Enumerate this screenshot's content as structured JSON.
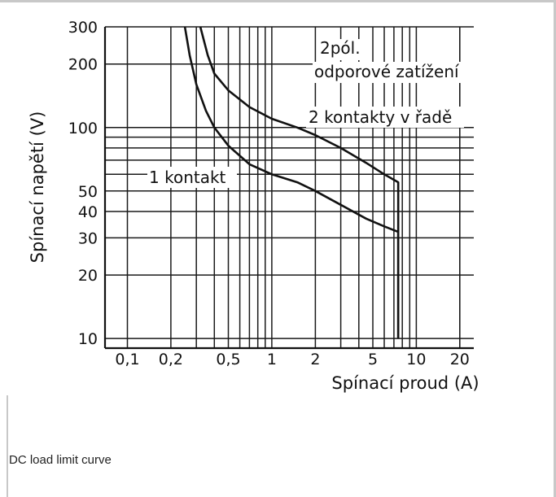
{
  "chart_data": {
    "type": "line",
    "xlabel": "Spínací proud (A)",
    "ylabel": "Spínací napětí (V)",
    "x_scale": "log",
    "y_scale": "log",
    "xlim": [
      0.07,
      25
    ],
    "ylim": [
      9,
      300
    ],
    "x_ticks": [
      {
        "value": 0.1,
        "label": "0,1"
      },
      {
        "value": 0.2,
        "label": "0,2"
      },
      {
        "value": 0.5,
        "label": "0,5"
      },
      {
        "value": 1,
        "label": "1"
      },
      {
        "value": 2,
        "label": "2"
      },
      {
        "value": 5,
        "label": "5"
      },
      {
        "value": 10,
        "label": "10"
      },
      {
        "value": 20,
        "label": "20"
      }
    ],
    "y_ticks": [
      {
        "value": 10,
        "label": "10"
      },
      {
        "value": 20,
        "label": "20"
      },
      {
        "value": 30,
        "label": "30"
      },
      {
        "value": 40,
        "label": "40"
      },
      {
        "value": 50,
        "label": "50"
      },
      {
        "value": 100,
        "label": "100"
      },
      {
        "value": 200,
        "label": "200"
      },
      {
        "value": 300,
        "label": "300"
      }
    ],
    "grid": true,
    "series": [
      {
        "name": "1 kontakt",
        "x": [
          0.25,
          0.27,
          0.3,
          0.35,
          0.4,
          0.5,
          0.7,
          1.0,
          1.5,
          2.0,
          3.0,
          4.5,
          6.0,
          7.5,
          7.5
        ],
        "y": [
          300,
          220,
          160,
          120,
          100,
          82,
          67,
          60,
          55,
          50,
          43,
          37,
          34,
          32,
          10
        ]
      },
      {
        "name": "2 kontakty v řadě",
        "x": [
          0.32,
          0.36,
          0.4,
          0.5,
          0.7,
          1.0,
          1.5,
          2.0,
          3.0,
          4.5,
          6.0,
          7.5,
          7.5
        ],
        "y": [
          300,
          220,
          180,
          150,
          125,
          110,
          100,
          92,
          80,
          68,
          60,
          55,
          10
        ]
      }
    ],
    "annotations": [
      "2pól.",
      "odporové zatížení",
      "2 kontakty v řadě",
      "1 kontakt"
    ]
  },
  "caption": "DC load limit curve"
}
